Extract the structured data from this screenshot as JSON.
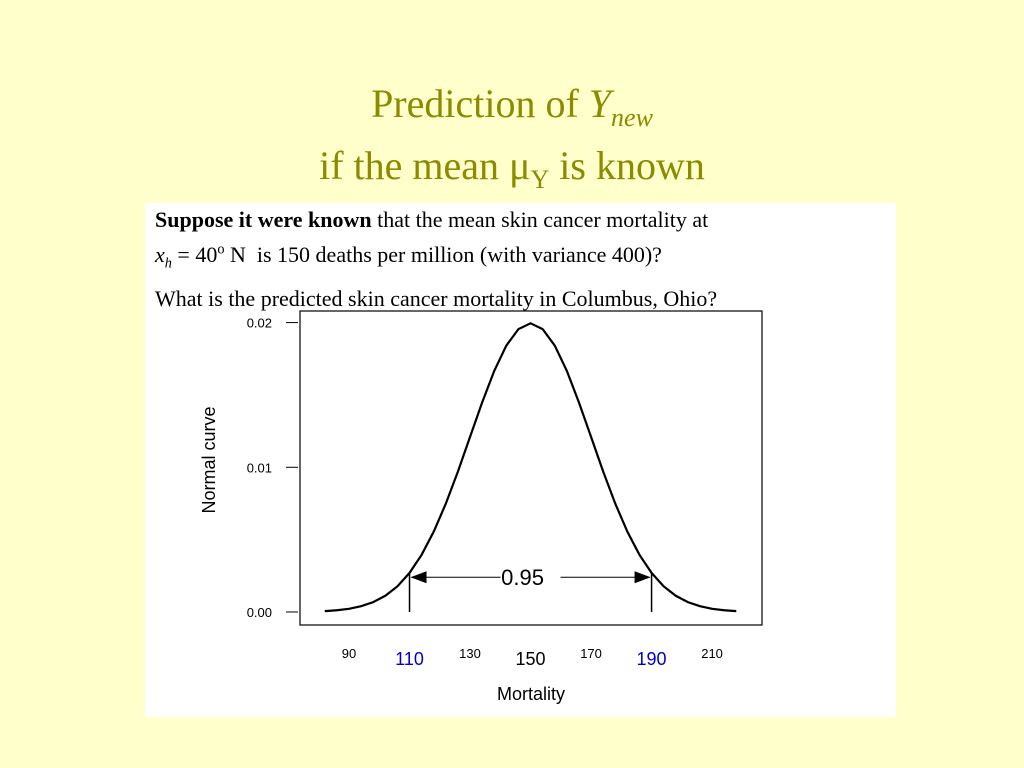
{
  "slide": {
    "title_1": "Prediction of ",
    "title_y": "Y",
    "title_new": "new",
    "title_2a": "if the mean ",
    "title_mu": "μ",
    "title_muY": "Y",
    "title_2b": " is known",
    "text": {
      "bold": "Suppose it were known",
      "line1": " that the mean skin cancer mortality at",
      "x": "x",
      "h": "h",
      "eq": " = 40",
      "deg": "o",
      "line2": " N  is 150 deaths per million (with variance 400)?",
      "line3": "What is the predicted skin cancer mortality in Columbus, Ohio?"
    }
  },
  "chart_data": {
    "type": "line",
    "xlabel": "Mortality",
    "ylabel": "Normal curve",
    "x": [
      82,
      86,
      90,
      94,
      98,
      102,
      106,
      110,
      114,
      118,
      122,
      126,
      130,
      134,
      138,
      142,
      146,
      150,
      154,
      158,
      162,
      166,
      170,
      174,
      178,
      182,
      186,
      190,
      194,
      198,
      202,
      206,
      210,
      214,
      218
    ],
    "series": [
      {
        "name": "Normal curve",
        "color": "#000000",
        "values": [
          6e-05,
          0.00012,
          0.00022,
          0.0004,
          0.00068,
          0.00112,
          0.00177,
          0.0027,
          0.00395,
          0.00555,
          0.00749,
          0.00971,
          0.0121,
          0.01448,
          0.01666,
          0.01841,
          0.01955,
          0.01995,
          0.01955,
          0.01841,
          0.01666,
          0.01448,
          0.0121,
          0.00971,
          0.00749,
          0.00555,
          0.00395,
          0.0027,
          0.00177,
          0.00112,
          0.00068,
          0.0004,
          0.00022,
          0.00012,
          6e-05
        ]
      }
    ],
    "xlim": [
      73.8,
      226.5
    ],
    "ylim": [
      -0.0009,
      0.0208
    ],
    "xticks": [
      90,
      130,
      170,
      210
    ],
    "yticks": [
      {
        "value": 0,
        "label": "0.00"
      },
      0.01,
      0.02
    ],
    "highlight_x": [
      110,
      150,
      190
    ],
    "highlight_colors": [
      "#0000cc",
      "#000000",
      "#0000cc"
    ],
    "annotation": {
      "text": "0.95",
      "from": 110,
      "to": 190,
      "y": 0.0024
    }
  }
}
